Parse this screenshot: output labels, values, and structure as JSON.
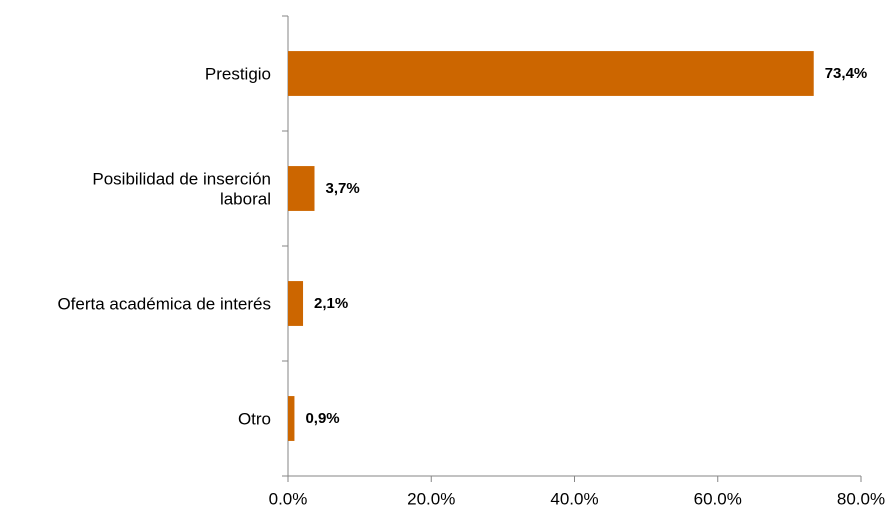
{
  "chart_data": {
    "type": "bar",
    "orientation": "horizontal",
    "categories": [
      [
        "Prestigio"
      ],
      [
        "Posibilidad de inserción",
        "laboral"
      ],
      [
        "Oferta académica de interés"
      ],
      [
        "Otro"
      ]
    ],
    "values": [
      73.4,
      3.7,
      2.1,
      0.9
    ],
    "data_labels": [
      "73,4%",
      "3,7%",
      "2,1%",
      "0,9%"
    ],
    "x_ticks": [
      0,
      20,
      40,
      60,
      80
    ],
    "x_tick_labels": [
      "0.0%",
      "20.0%",
      "40.0%",
      "60.0%",
      "80.0%"
    ],
    "xlim": [
      0,
      80
    ],
    "title": "",
    "xlabel": "",
    "ylabel": "",
    "grid": false,
    "legend": "none",
    "bar_color": "#CC6600"
  }
}
